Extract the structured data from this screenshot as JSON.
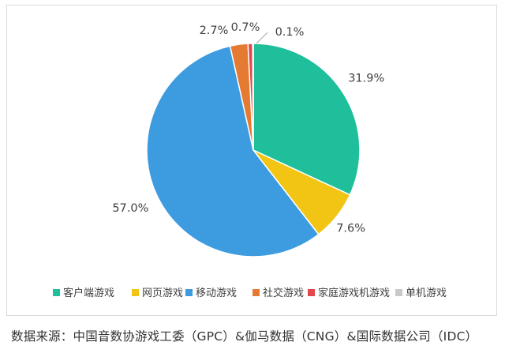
{
  "chart_data": {
    "type": "pie",
    "categories": [
      "客户端游戏",
      "网页游戏",
      "移动游戏",
      "社交游戏",
      "家庭游戏机游戏",
      "单机游戏"
    ],
    "values": [
      31.9,
      7.6,
      57.0,
      2.7,
      0.7,
      0.1
    ],
    "data_labels": [
      "31.9%",
      "7.6%",
      "57.0%",
      "2.7%",
      "0.7%",
      "0.1%"
    ],
    "colors": [
      "#1fbf9c",
      "#f2c413",
      "#3d9be0",
      "#e57a33",
      "#e2474c",
      "#c8c8c8"
    ],
    "start_angle": "12 o'clock, clockwise",
    "legend_position": "bottom"
  },
  "source": "数据来源：中国音数协游戏工委（GPC）&伽马数据（CNG）&国际数据公司（IDC）"
}
